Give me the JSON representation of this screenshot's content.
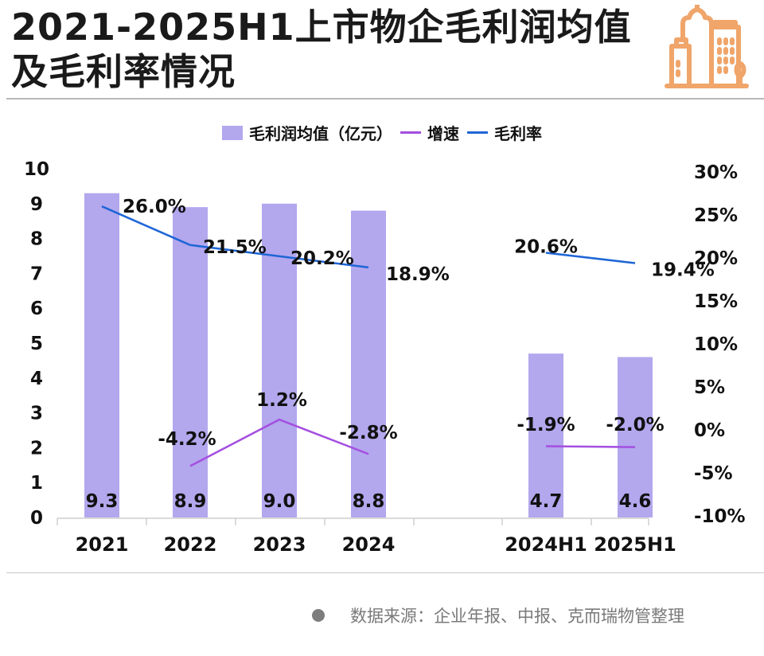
{
  "title": "2021-2025H1上市物企毛利润均值及毛利率情况",
  "logo_icon": "city-buildings-icon",
  "legend": {
    "bar_label": "毛利润均值（亿元）",
    "growth_label": "增速",
    "margin_label": "毛利率"
  },
  "source": {
    "bullet_icon": "dot-icon",
    "text": "数据来源：企业年报、中报、克而瑞物管整理"
  },
  "colors": {
    "bar": "#b3a7ee",
    "growth_line": "#a44fe0",
    "margin_line": "#1f66d6",
    "logo": "#f0a56a"
  },
  "chart_data": {
    "type": "bar",
    "title": "2021-2025H1上市物企毛利润均值及毛利率情况",
    "categories": [
      "2021",
      "2022",
      "2023",
      "2024",
      "2024H1",
      "2025H1"
    ],
    "series": [
      {
        "name": "毛利润均值（亿元）",
        "type": "bar",
        "axis": "left",
        "values": [
          9.3,
          8.9,
          9.0,
          8.8,
          4.7,
          4.6
        ],
        "labels": [
          "9.3",
          "8.9",
          "9.0",
          "8.8",
          "4.7",
          "4.6"
        ]
      },
      {
        "name": "增速",
        "type": "line",
        "axis": "right",
        "segments": [
          [
            "2022",
            "2023",
            "2024"
          ],
          [
            "2024H1",
            "2025H1"
          ]
        ],
        "values": [
          null,
          -4.2,
          1.2,
          -2.8,
          -1.9,
          -2.0
        ],
        "labels": [
          null,
          "-4.2%",
          "1.2%",
          "-2.8%",
          "-1.9%",
          "-2.0%"
        ]
      },
      {
        "name": "毛利率",
        "type": "line",
        "axis": "right",
        "segments": [
          [
            "2021",
            "2022",
            "2023",
            "2024"
          ],
          [
            "2024H1",
            "2025H1"
          ]
        ],
        "values": [
          26.0,
          21.5,
          20.2,
          18.9,
          20.6,
          19.4
        ],
        "labels": [
          "26.0%",
          "21.5%",
          "20.2%",
          "18.9%",
          "20.6%",
          "19.4%"
        ]
      }
    ],
    "left_axis": {
      "ylim": [
        0,
        10
      ],
      "ticks": [
        "0",
        "1",
        "2",
        "3",
        "4",
        "5",
        "6",
        "7",
        "8",
        "9",
        "10"
      ]
    },
    "right_axis": {
      "ylim": [
        -10,
        30
      ],
      "ticks": [
        "-10%",
        "-5%",
        "0%",
        "5%",
        "10%",
        "15%",
        "20%",
        "25%",
        "30%"
      ]
    },
    "xlabel": "",
    "ylabel": "",
    "grid": false,
    "legend_position": "top-center"
  }
}
